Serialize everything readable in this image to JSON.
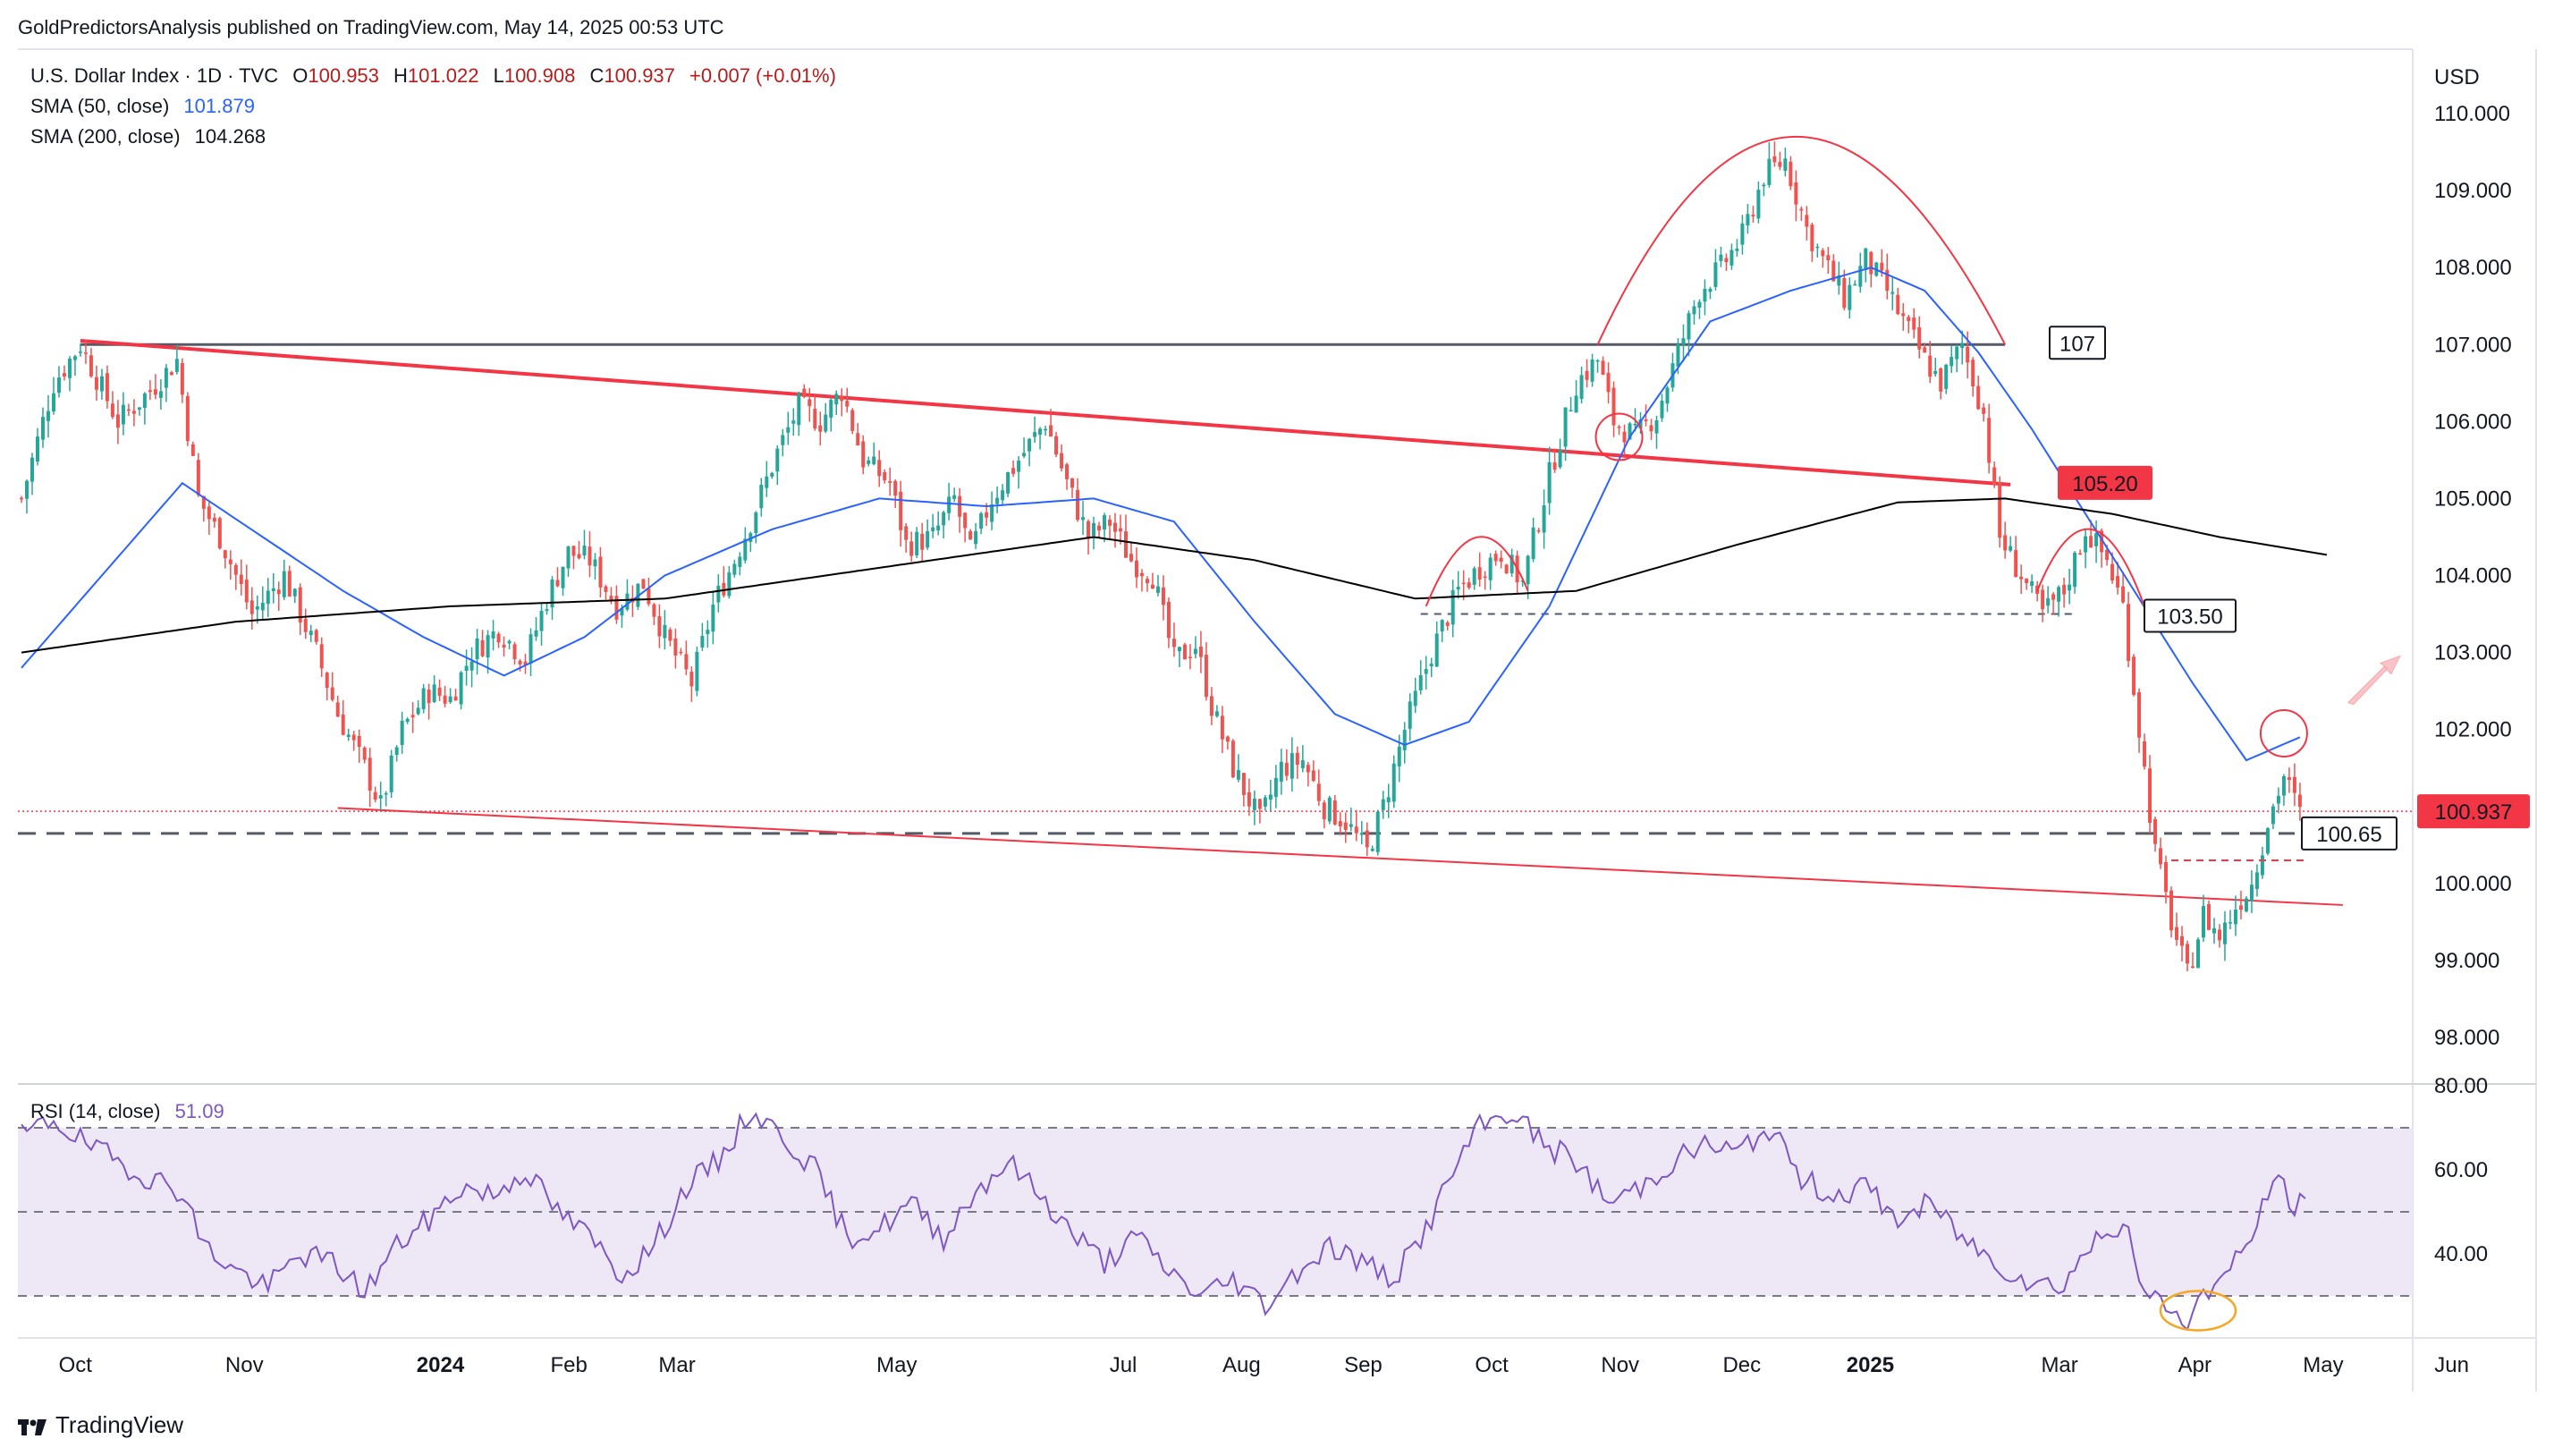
{
  "header": {
    "published_line": "GoldPredictorsAnalysis published on TradingView.com, May 14, 2025 00:53 UTC"
  },
  "footer": {
    "brand": "TradingView"
  },
  "legend": {
    "symbol": "U.S. Dollar Index · 1D · TVC",
    "ohlc": [
      {
        "key": "O",
        "value": "100.953"
      },
      {
        "key": "H",
        "value": "101.022"
      },
      {
        "key": "L",
        "value": "100.908"
      },
      {
        "key": "C",
        "value": "100.937"
      }
    ],
    "change": "+0.007 (+0.01%)",
    "sma50_label": "SMA (50, close)",
    "sma50_value": "101.879",
    "sma200_label": "SMA (200, close)",
    "sma200_value": "104.268",
    "rsi_label": "RSI (14, close)",
    "rsi_value": "51.09"
  },
  "colors": {
    "up": "#26a69a",
    "down": "#ef5350",
    "sma50": "#2962ff",
    "sma200": "#000000",
    "annotation_red": "#f23645",
    "rsi_line": "#7e57c2",
    "rsi_band": "#ede7f6",
    "badge_price": "#f23645"
  },
  "chart_data": [
    {
      "type": "line",
      "panel": "price",
      "currency": "USD",
      "price_axis_ticks": [
        "110.000",
        "109.000",
        "108.000",
        "107.000",
        "106.000",
        "105.000",
        "104.000",
        "103.000",
        "102.000",
        "101.000",
        "100.000",
        "99.000",
        "98.000"
      ],
      "ylim": [
        97.5,
        110.3
      ],
      "time_axis_ticks": [
        {
          "label": "Oct",
          "bold": false
        },
        {
          "label": "Nov",
          "bold": false
        },
        {
          "label": "2024",
          "bold": true
        },
        {
          "label": "Feb",
          "bold": false
        },
        {
          "label": "Mar",
          "bold": false
        },
        {
          "label": "May",
          "bold": false
        },
        {
          "label": "Jul",
          "bold": false
        },
        {
          "label": "Aug",
          "bold": false
        },
        {
          "label": "Sep",
          "bold": false
        },
        {
          "label": "Oct",
          "bold": false
        },
        {
          "label": "Nov",
          "bold": false
        },
        {
          "label": "Dec",
          "bold": false
        },
        {
          "label": "2025",
          "bold": true
        },
        {
          "label": "Mar",
          "bold": false
        },
        {
          "label": "Apr",
          "bold": false
        },
        {
          "label": "May",
          "bold": false
        },
        {
          "label": "Jun",
          "bold": false
        }
      ],
      "series": [
        {
          "name": "U.S. Dollar Index",
          "close_path": [
            [
              0,
              105.0
            ],
            [
              6,
              106.5
            ],
            [
              11,
              107.0
            ],
            [
              18,
              106.0
            ],
            [
              24,
              106.4
            ],
            [
              29,
              106.8
            ],
            [
              33,
              105.0
            ],
            [
              37,
              104.5
            ],
            [
              43,
              103.5
            ],
            [
              49,
              104.0
            ],
            [
              55,
              103.0
            ],
            [
              59,
              102.2
            ],
            [
              64,
              101.5
            ],
            [
              67,
              101.0
            ],
            [
              71,
              102.0
            ],
            [
              76,
              102.5
            ],
            [
              80,
              102.4
            ],
            [
              84,
              103.0
            ],
            [
              89,
              103.3
            ],
            [
              94,
              102.9
            ],
            [
              98,
              103.7
            ],
            [
              102,
              104.3
            ],
            [
              106,
              104.2
            ],
            [
              111,
              103.6
            ],
            [
              116,
              103.9
            ],
            [
              120,
              103.2
            ],
            [
              125,
              102.6
            ],
            [
              129,
              103.6
            ],
            [
              133,
              104.2
            ],
            [
              136,
              104.7
            ],
            [
              141,
              105.6
            ],
            [
              145,
              106.2
            ],
            [
              149,
              106.0
            ],
            [
              153,
              106.4
            ],
            [
              157,
              105.5
            ],
            [
              162,
              105.2
            ],
            [
              165,
              104.4
            ],
            [
              170,
              104.5
            ],
            [
              174,
              105.0
            ],
            [
              177,
              104.3
            ],
            [
              181,
              105.0
            ],
            [
              186,
              105.5
            ],
            [
              191,
              106.0
            ],
            [
              195,
              105.2
            ],
            [
              199,
              104.5
            ],
            [
              203,
              104.7
            ],
            [
              207,
              104.2
            ],
            [
              211,
              104.0
            ],
            [
              215,
              102.9
            ],
            [
              219,
              103.1
            ],
            [
              222,
              102.3
            ],
            [
              226,
              101.5
            ],
            [
              231,
              100.8
            ],
            [
              235,
              101.5
            ],
            [
              239,
              101.6
            ],
            [
              243,
              101.0
            ],
            [
              247,
              100.8
            ],
            [
              251,
              100.4
            ],
            [
              254,
              101.0
            ],
            [
              258,
              102.0
            ],
            [
              263,
              103.0
            ],
            [
              268,
              103.8
            ],
            [
              272,
              104.1
            ],
            [
              276,
              104.3
            ],
            [
              280,
              103.9
            ],
            [
              285,
              105.3
            ],
            [
              290,
              106.5
            ],
            [
              294,
              106.8
            ],
            [
              297,
              106.0
            ],
            [
              301,
              105.8
            ],
            [
              305,
              106.1
            ],
            [
              309,
              106.9
            ],
            [
              313,
              107.7
            ],
            [
              317,
              108.0
            ],
            [
              321,
              108.4
            ],
            [
              325,
              109.2
            ],
            [
              329,
              109.4
            ],
            [
              333,
              108.5
            ],
            [
              336,
              108.1
            ],
            [
              340,
              107.6
            ],
            [
              344,
              108.1
            ],
            [
              348,
              107.7
            ],
            [
              351,
              107.3
            ],
            [
              355,
              106.8
            ],
            [
              358,
              106.5
            ],
            [
              362,
              107.0
            ],
            [
              366,
              106.1
            ],
            [
              369,
              104.5
            ],
            [
              373,
              104.0
            ],
            [
              377,
              103.5
            ],
            [
              381,
              103.8
            ],
            [
              385,
              104.6
            ],
            [
              389,
              104.2
            ],
            [
              392,
              103.6
            ],
            [
              395,
              102.0
            ],
            [
              398,
              100.4
            ],
            [
              401,
              99.5
            ],
            [
              404,
              98.8
            ],
            [
              407,
              99.6
            ],
            [
              410,
              99.3
            ],
            [
              413,
              99.7
            ],
            [
              416,
              100.0
            ],
            [
              419,
              100.8
            ],
            [
              422,
              101.4
            ],
            [
              425,
              100.9
            ]
          ]
        },
        {
          "name": "SMA (50, close)",
          "path": [
            [
              0,
              102.8
            ],
            [
              30,
              105.2
            ],
            [
              60,
              103.8
            ],
            [
              75,
              103.2
            ],
            [
              90,
              102.7
            ],
            [
              105,
              103.2
            ],
            [
              120,
              104.0
            ],
            [
              140,
              104.6
            ],
            [
              160,
              105.0
            ],
            [
              180,
              104.9
            ],
            [
              200,
              105.0
            ],
            [
              215,
              104.7
            ],
            [
              230,
              103.4
            ],
            [
              245,
              102.2
            ],
            [
              258,
              101.8
            ],
            [
              270,
              102.1
            ],
            [
              285,
              103.6
            ],
            [
              300,
              105.8
            ],
            [
              315,
              107.3
            ],
            [
              330,
              107.7
            ],
            [
              345,
              108.0
            ],
            [
              355,
              107.7
            ],
            [
              365,
              106.9
            ],
            [
              375,
              105.9
            ],
            [
              385,
              104.8
            ],
            [
              395,
              103.7
            ],
            [
              405,
              102.6
            ],
            [
              415,
              101.6
            ],
            [
              425,
              101.9
            ]
          ]
        },
        {
          "name": "SMA (200, close)",
          "path": [
            [
              0,
              103.0
            ],
            [
              40,
              103.4
            ],
            [
              80,
              103.6
            ],
            [
              120,
              103.7
            ],
            [
              160,
              104.1
            ],
            [
              200,
              104.5
            ],
            [
              230,
              104.2
            ],
            [
              260,
              103.7
            ],
            [
              290,
              103.8
            ],
            [
              320,
              104.4
            ],
            [
              350,
              104.95
            ],
            [
              370,
              105.0
            ],
            [
              390,
              104.8
            ],
            [
              410,
              104.5
            ],
            [
              430,
              104.268
            ]
          ]
        }
      ],
      "annotations": [
        {
          "type": "hline",
          "value": 107.0,
          "label": "107"
        },
        {
          "type": "trendline",
          "from": [
            11,
            107.05
          ],
          "to": [
            371,
            105.18
          ],
          "label": "105.20"
        },
        {
          "type": "hline_dashed",
          "value": 103.5,
          "label": "103.50"
        },
        {
          "type": "hline_dashed",
          "value": 100.65,
          "label": "100.65"
        },
        {
          "type": "trendline",
          "from": [
            59,
            100.98
          ],
          "to": [
            433,
            99.72
          ],
          "label": ""
        },
        {
          "type": "last_price",
          "value": 100.937,
          "label": "100.937"
        }
      ]
    },
    {
      "type": "line",
      "panel": "rsi",
      "axis_ticks": [
        "80.00",
        "60.00",
        "40.00"
      ],
      "ylim": [
        20,
        80
      ],
      "bands": [
        30,
        70
      ],
      "series": [
        {
          "name": "RSI (14, close)",
          "path": [
            [
              0,
              68
            ],
            [
              6,
              72
            ],
            [
              12,
              66
            ],
            [
              18,
              62
            ],
            [
              24,
              58
            ],
            [
              30,
              55
            ],
            [
              34,
              42
            ],
            [
              40,
              36
            ],
            [
              46,
              32
            ],
            [
              52,
              40
            ],
            [
              58,
              38
            ],
            [
              64,
              31
            ],
            [
              70,
              42
            ],
            [
              76,
              48
            ],
            [
              82,
              56
            ],
            [
              88,
              54
            ],
            [
              94,
              60
            ],
            [
              100,
              50
            ],
            [
              106,
              44
            ],
            [
              112,
              35
            ],
            [
              118,
              42
            ],
            [
              124,
              56
            ],
            [
              130,
              62
            ],
            [
              136,
              74
            ],
            [
              142,
              68
            ],
            [
              148,
              60
            ],
            [
              154,
              44
            ],
            [
              160,
              46
            ],
            [
              166,
              52
            ],
            [
              172,
              44
            ],
            [
              178,
              55
            ],
            [
              184,
              62
            ],
            [
              190,
              54
            ],
            [
              196,
              45
            ],
            [
              202,
              38
            ],
            [
              208,
              44
            ],
            [
              214,
              36
            ],
            [
              220,
              30
            ],
            [
              226,
              34
            ],
            [
              232,
              28
            ],
            [
              238,
              36
            ],
            [
              244,
              42
            ],
            [
              250,
              38
            ],
            [
              256,
              34
            ],
            [
              262,
              46
            ],
            [
              268,
              62
            ],
            [
              272,
              70
            ],
            [
              278,
              74
            ],
            [
              284,
              66
            ],
            [
              290,
              62
            ],
            [
              296,
              52
            ],
            [
              302,
              56
            ],
            [
              308,
              62
            ],
            [
              314,
              66
            ],
            [
              320,
              64
            ],
            [
              326,
              70
            ],
            [
              332,
              58
            ],
            [
              338,
              54
            ],
            [
              344,
              56
            ],
            [
              350,
              48
            ],
            [
              356,
              52
            ],
            [
              362,
              44
            ],
            [
              368,
              38
            ],
            [
              374,
              34
            ],
            [
              380,
              32
            ],
            [
              386,
              42
            ],
            [
              392,
              48
            ],
            [
              396,
              30
            ],
            [
              400,
              28
            ],
            [
              404,
              24
            ],
            [
              408,
              32
            ],
            [
              412,
              36
            ],
            [
              416,
              44
            ],
            [
              420,
              58
            ],
            [
              424,
              52
            ],
            [
              426,
              51.09
            ]
          ]
        }
      ]
    }
  ]
}
